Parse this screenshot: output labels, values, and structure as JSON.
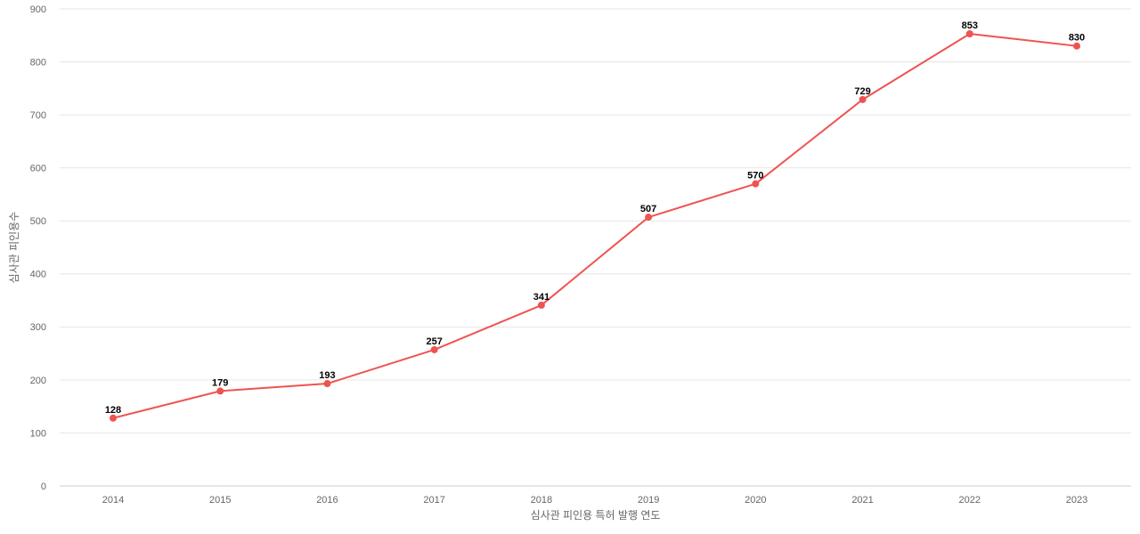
{
  "chart_data": {
    "type": "line",
    "title": "",
    "xlabel": "심사관 피인용 특허 발행 연도",
    "ylabel": "심사관 피인용수",
    "categories": [
      "2014",
      "2015",
      "2016",
      "2017",
      "2018",
      "2019",
      "2020",
      "2021",
      "2022",
      "2023"
    ],
    "series": [
      {
        "values": [
          128,
          179,
          193,
          257,
          341,
          507,
          570,
          729,
          853,
          830
        ]
      }
    ],
    "ylim": [
      0,
      900
    ],
    "yticks": [
      0,
      100,
      200,
      300,
      400,
      500,
      600,
      700,
      800,
      900
    ],
    "grid": true,
    "legend": "none",
    "colors": {
      "line": "#ef5350",
      "marker": "#ef5350"
    }
  }
}
